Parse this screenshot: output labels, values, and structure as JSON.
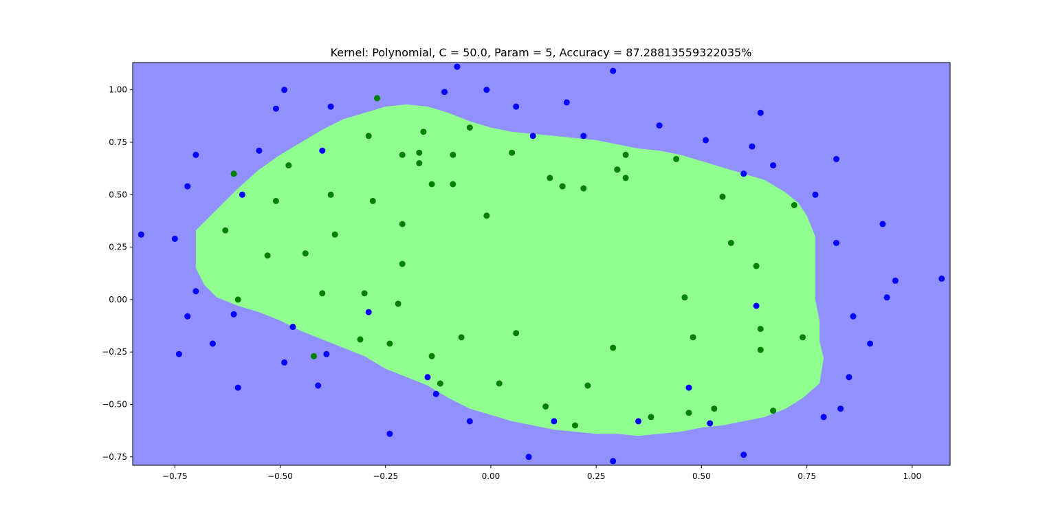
{
  "chart_data": {
    "type": "scatter",
    "title": "Kernel: Polynomial, C = 50.0, Param = 5, Accuracy = 87.28813559322035%",
    "xlabel": "",
    "ylabel": "",
    "xlim": [
      -0.85,
      1.09
    ],
    "ylim": [
      -0.79,
      1.13
    ],
    "xticks": [
      -0.75,
      -0.5,
      -0.25,
      0.0,
      0.25,
      0.5,
      0.75,
      1.0
    ],
    "xtick_labels": [
      "−0.75",
      "−0.50",
      "−0.25",
      "0.00",
      "0.25",
      "0.50",
      "0.75",
      "1.00"
    ],
    "yticks": [
      -0.75,
      -0.5,
      -0.25,
      0.0,
      0.25,
      0.5,
      0.75,
      1.0
    ],
    "ytick_labels": [
      "−0.75",
      "−0.50",
      "−0.25",
      "0.00",
      "0.25",
      "0.50",
      "0.75",
      "1.00"
    ],
    "grid": false,
    "legend": "none",
    "colors": {
      "outside_region": "#9090ff",
      "inside_region": "#90ff90",
      "blue_points": "#0000ff",
      "green_points": "#008000"
    },
    "decision_region": {
      "boundary": [
        [
          -0.7,
          0.33
        ],
        [
          -0.65,
          0.43
        ],
        [
          -0.6,
          0.53
        ],
        [
          -0.55,
          0.62
        ],
        [
          -0.5,
          0.69
        ],
        [
          -0.45,
          0.75
        ],
        [
          -0.4,
          0.81
        ],
        [
          -0.35,
          0.86
        ],
        [
          -0.3,
          0.89
        ],
        [
          -0.25,
          0.92
        ],
        [
          -0.2,
          0.93
        ],
        [
          -0.15,
          0.92
        ],
        [
          -0.1,
          0.89
        ],
        [
          -0.05,
          0.85
        ],
        [
          0.0,
          0.82
        ],
        [
          0.05,
          0.8
        ],
        [
          0.1,
          0.79
        ],
        [
          0.15,
          0.78
        ],
        [
          0.2,
          0.77
        ],
        [
          0.25,
          0.76
        ],
        [
          0.3,
          0.74
        ],
        [
          0.35,
          0.72
        ],
        [
          0.4,
          0.71
        ],
        [
          0.45,
          0.69
        ],
        [
          0.5,
          0.66
        ],
        [
          0.55,
          0.63
        ],
        [
          0.6,
          0.6
        ],
        [
          0.65,
          0.57
        ],
        [
          0.7,
          0.51
        ],
        [
          0.73,
          0.46
        ],
        [
          0.75,
          0.4
        ],
        [
          0.77,
          0.3
        ],
        [
          0.77,
          0.15
        ],
        [
          0.77,
          0.0
        ],
        [
          0.78,
          -0.1
        ],
        [
          0.78,
          -0.2
        ],
        [
          0.79,
          -0.28
        ],
        [
          0.78,
          -0.4
        ],
        [
          0.74,
          -0.47
        ],
        [
          0.7,
          -0.52
        ],
        [
          0.65,
          -0.56
        ],
        [
          0.6,
          -0.58
        ],
        [
          0.55,
          -0.6
        ],
        [
          0.5,
          -0.61
        ],
        [
          0.45,
          -0.63
        ],
        [
          0.4,
          -0.64
        ],
        [
          0.35,
          -0.65
        ],
        [
          0.3,
          -0.64
        ],
        [
          0.25,
          -0.64
        ],
        [
          0.2,
          -0.63
        ],
        [
          0.15,
          -0.62
        ],
        [
          0.1,
          -0.6
        ],
        [
          0.05,
          -0.58
        ],
        [
          0.0,
          -0.55
        ],
        [
          -0.05,
          -0.52
        ],
        [
          -0.1,
          -0.47
        ],
        [
          -0.15,
          -0.41
        ],
        [
          -0.2,
          -0.37
        ],
        [
          -0.25,
          -0.33
        ],
        [
          -0.3,
          -0.27
        ],
        [
          -0.35,
          -0.23
        ],
        [
          -0.4,
          -0.19
        ],
        [
          -0.45,
          -0.15
        ],
        [
          -0.5,
          -0.1
        ],
        [
          -0.55,
          -0.06
        ],
        [
          -0.6,
          -0.03
        ],
        [
          -0.65,
          0.01
        ],
        [
          -0.68,
          0.07
        ],
        [
          -0.7,
          0.15
        ],
        [
          -0.7,
          0.25
        ]
      ]
    },
    "series": [
      {
        "x": [
          -0.08,
          0.29,
          -0.49,
          -0.11,
          -0.01,
          -0.51,
          -0.38,
          0.06,
          0.18,
          0.64,
          -0.55,
          -0.4,
          0.1,
          0.22,
          0.51,
          0.62,
          0.4,
          -0.7,
          -0.72,
          0.3,
          0.6,
          0.67,
          0.82,
          -0.59,
          0.77,
          0.93,
          0.82,
          -0.83,
          -0.75,
          1.07,
          0.96,
          -0.7,
          0.94,
          0.63,
          -0.61,
          -0.29,
          -0.72,
          0.86,
          -0.47,
          -0.66,
          -0.74,
          -0.39,
          0.9,
          -0.49,
          0.85,
          -0.15,
          -0.41,
          0.47,
          -0.6,
          -0.13,
          0.83,
          0.79,
          0.15,
          -0.05,
          0.35,
          0.52,
          -0.24,
          0.6,
          0.09,
          0.29
        ],
        "y": [
          1.11,
          1.09,
          1.0,
          0.99,
          1.0,
          0.91,
          0.92,
          0.92,
          0.94,
          0.89,
          0.71,
          0.71,
          0.78,
          0.78,
          0.76,
          0.73,
          0.83,
          0.69,
          0.54,
          0.62,
          0.6,
          0.64,
          0.67,
          0.5,
          0.5,
          0.36,
          0.27,
          0.31,
          0.29,
          0.1,
          0.09,
          0.04,
          0.01,
          -0.03,
          -0.07,
          -0.06,
          -0.08,
          -0.08,
          -0.13,
          -0.21,
          -0.26,
          -0.26,
          -0.21,
          -0.3,
          -0.37,
          -0.37,
          -0.41,
          -0.42,
          -0.42,
          -0.45,
          -0.52,
          -0.56,
          -0.58,
          -0.58,
          -0.58,
          -0.59,
          -0.64,
          -0.74,
          -0.75,
          -0.77
        ]
      },
      {
        "x": [
          -0.27,
          -0.16,
          -0.29,
          -0.05,
          -0.21,
          -0.17,
          -0.09,
          0.05,
          -0.17,
          -0.61,
          -0.48,
          -0.14,
          -0.09,
          0.14,
          0.17,
          0.22,
          0.32,
          0.32,
          0.44,
          0.3,
          -0.51,
          -0.38,
          -0.28,
          0.55,
          0.72,
          -0.63,
          -0.21,
          -0.37,
          -0.01,
          0.57,
          -0.53,
          -0.44,
          -0.21,
          0.63,
          -0.6,
          -0.4,
          -0.3,
          -0.22,
          0.46,
          -0.31,
          -0.24,
          -0.07,
          0.06,
          0.48,
          0.64,
          0.74,
          -0.42,
          -0.14,
          0.29,
          0.64,
          -0.12,
          0.02,
          0.23,
          0.13,
          0.67,
          0.47,
          0.53,
          0.38,
          0.2
        ],
        "y": [
          0.96,
          0.8,
          0.78,
          0.82,
          0.69,
          0.7,
          0.69,
          0.7,
          0.65,
          0.6,
          0.64,
          0.55,
          0.55,
          0.58,
          0.54,
          0.53,
          0.58,
          0.69,
          0.67,
          0.62,
          0.47,
          0.5,
          0.47,
          0.49,
          0.45,
          0.33,
          0.36,
          0.31,
          0.4,
          0.27,
          0.21,
          0.22,
          0.17,
          0.16,
          0.0,
          0.03,
          0.03,
          -0.02,
          0.01,
          -0.19,
          -0.21,
          -0.18,
          -0.16,
          -0.18,
          -0.14,
          -0.18,
          -0.27,
          -0.27,
          -0.23,
          -0.24,
          -0.4,
          -0.4,
          -0.41,
          -0.51,
          -0.53,
          -0.54,
          -0.52,
          -0.56,
          -0.6
        ]
      }
    ]
  }
}
